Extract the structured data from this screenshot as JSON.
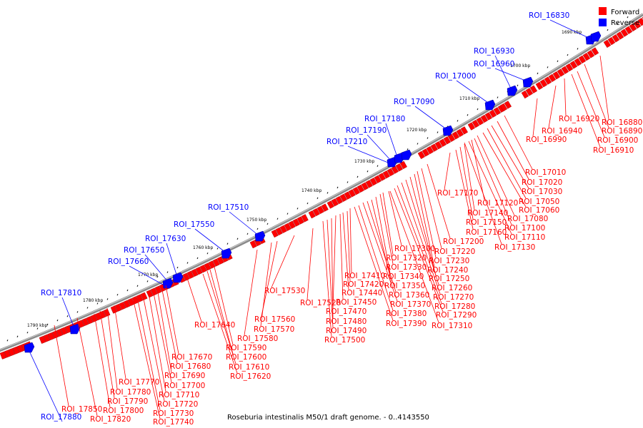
{
  "legend": {
    "forward": {
      "label": "Forward",
      "color": "#ff0000"
    },
    "reverse": {
      "label": "Reverse",
      "color": "#0000ff"
    }
  },
  "caption": "Roseburia intestinalis M50/1 draft genome. - 0..4143550",
  "ticks": [
    "1690 kbp",
    "1700 kbp",
    "1710 kbp",
    "1720 kbp",
    "1730 kbp",
    "1740 kbp",
    "1750 kbp",
    "1760 kbp",
    "1770 kbp",
    "1780 kbp",
    "1790 kbp"
  ],
  "forward_rois": [
    "ROI_16880",
    "ROI_16890",
    "ROI_16900",
    "ROI_16910",
    "ROI_16920",
    "ROI_16940",
    "ROI_16990",
    "ROI_17010",
    "ROI_17020",
    "ROI_17030",
    "ROI_17050",
    "ROI_17060",
    "ROI_17080",
    "ROI_17100",
    "ROI_17110",
    "ROI_17130",
    "ROI_17120",
    "ROI_17140",
    "ROI_17150",
    "ROI_17160",
    "ROI_17170",
    "ROI_17200",
    "ROI_17220",
    "ROI_17230",
    "ROI_17240",
    "ROI_17250",
    "ROI_17260",
    "ROI_17270",
    "ROI_17280",
    "ROI_17290",
    "ROI_17310",
    "ROI_17300",
    "ROI_17320",
    "ROI_17330",
    "ROI_17340",
    "ROI_17350",
    "ROI_17360",
    "ROI_17370",
    "ROI_17380",
    "ROI_17390",
    "ROI_17410",
    "ROI_17420",
    "ROI_17440",
    "ROI_17450",
    "ROI_17470",
    "ROI_17480",
    "ROI_17490",
    "ROI_17500",
    "ROI_17520",
    "ROI_17530",
    "ROI_17560",
    "ROI_17570",
    "ROI_17580",
    "ROI_17590",
    "ROI_17600",
    "ROI_17610",
    "ROI_17620",
    "ROI_17640",
    "ROI_17670",
    "ROI_17680",
    "ROI_17690",
    "ROI_17700",
    "ROI_17710",
    "ROI_17720",
    "ROI_17730",
    "ROI_17740",
    "ROI_17770",
    "ROI_17780",
    "ROI_17790",
    "ROI_17800",
    "ROI_17820",
    "ROI_17850"
  ],
  "reverse_rois": [
    "ROI_16830",
    "ROI_16930",
    "ROI_16960",
    "ROI_17000",
    "ROI_17090",
    "ROI_17180",
    "ROI_17190",
    "ROI_17210",
    "ROI_17510",
    "ROI_17550",
    "ROI_17630",
    "ROI_17650",
    "ROI_17660",
    "ROI_17810",
    "ROI_17880"
  ]
}
